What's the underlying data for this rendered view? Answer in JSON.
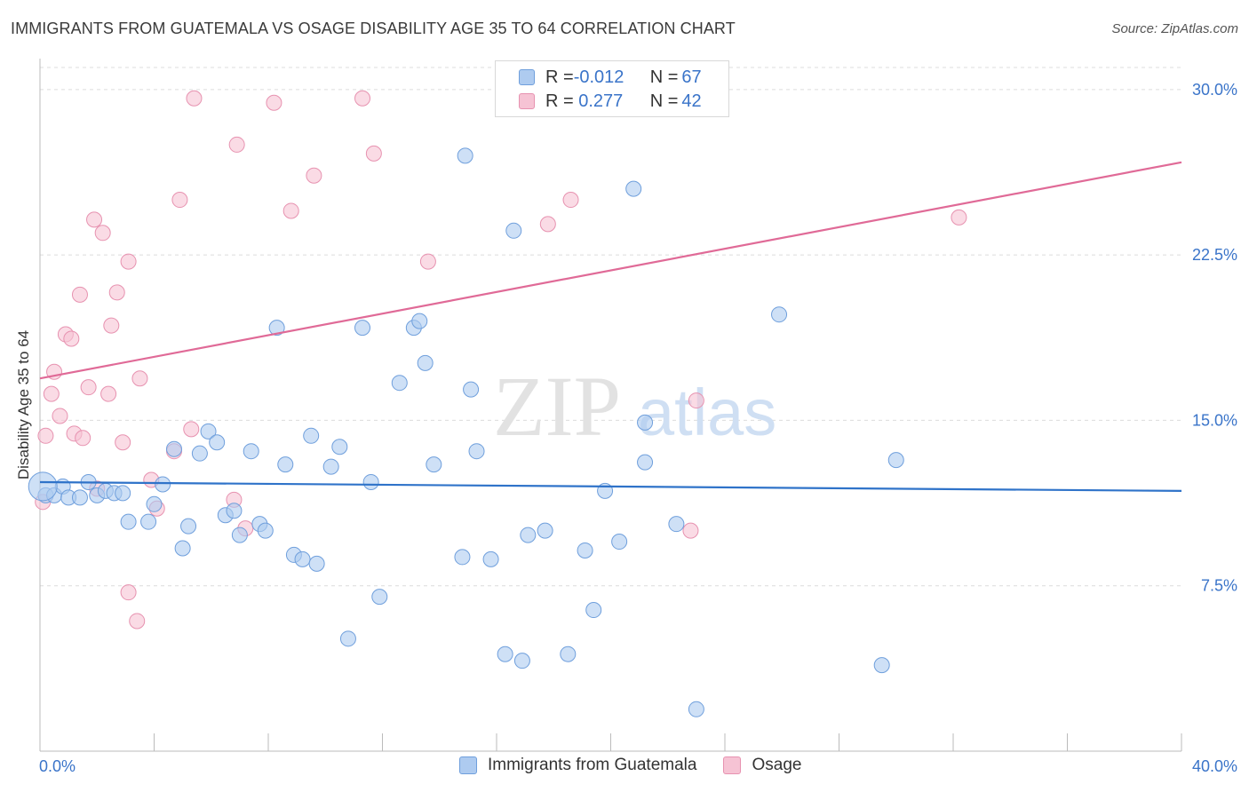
{
  "title": "IMMIGRANTS FROM GUATEMALA VS OSAGE DISABILITY AGE 35 TO 64 CORRELATION CHART",
  "source": "Source: ZipAtlas.com",
  "watermark": {
    "zip": "ZIP",
    "atlas": "atlas"
  },
  "legend_top": [
    {
      "r_label": "R = ",
      "r_value": "-0.012",
      "n_label": "N = ",
      "n_value": "67"
    },
    {
      "r_label": "R = ",
      "r_value": " 0.277",
      "n_label": "N = ",
      "n_value": "42"
    }
  ],
  "legend_bottom": [
    "Immigrants from Guatemala",
    "Osage"
  ],
  "colors": {
    "blue_fill": "#aecbf0",
    "blue_stroke": "#6f9fdc",
    "blue_line": "#2f73c9",
    "pink_fill": "#f6c3d4",
    "pink_stroke": "#e792b0",
    "pink_line": "#e06a97",
    "tick_label": "#3a74c9",
    "grid": "#dcdcdc"
  },
  "chart_data": {
    "type": "scatter",
    "title": "IMMIGRANTS FROM GUATEMALA VS OSAGE DISABILITY AGE 35 TO 64 CORRELATION CHART",
    "xlabel": "",
    "ylabel": "Disability Age 35 to 64",
    "xlim": [
      0,
      40
    ],
    "ylim": [
      0,
      31
    ],
    "x_tick_labels": [
      {
        "value": 0,
        "label": "0.0%"
      },
      {
        "value": 40,
        "label": "40.0%"
      }
    ],
    "x_minor_ticks": [
      0,
      4,
      8,
      12,
      16,
      20,
      24,
      28,
      32,
      36,
      40
    ],
    "y_ticks": [
      {
        "value": 7.5,
        "label": "7.5%"
      },
      {
        "value": 15.0,
        "label": "15.0%"
      },
      {
        "value": 22.5,
        "label": "22.5%"
      },
      {
        "value": 30.0,
        "label": "30.0%"
      }
    ],
    "grid": "horizontal dashed",
    "legend_position": "top-center",
    "series": [
      {
        "name": "Immigrants from Guatemala",
        "color": "blue",
        "trend": {
          "x": [
            0,
            40
          ],
          "y": [
            12.2,
            11.8
          ]
        },
        "points": [
          [
            0.2,
            11.6
          ],
          [
            0.5,
            11.6
          ],
          [
            0.8,
            12.0
          ],
          [
            1.0,
            11.5
          ],
          [
            1.4,
            11.5
          ],
          [
            1.7,
            12.2
          ],
          [
            2.0,
            11.6
          ],
          [
            2.3,
            11.8
          ],
          [
            2.6,
            11.7
          ],
          [
            2.9,
            11.7
          ],
          [
            3.1,
            10.4
          ],
          [
            3.8,
            10.4
          ],
          [
            4.0,
            11.2
          ],
          [
            4.3,
            12.1
          ],
          [
            4.7,
            13.7
          ],
          [
            5.0,
            9.2
          ],
          [
            5.2,
            10.2
          ],
          [
            5.6,
            13.5
          ],
          [
            5.9,
            14.5
          ],
          [
            6.2,
            14.0
          ],
          [
            6.5,
            10.7
          ],
          [
            6.8,
            10.9
          ],
          [
            7.0,
            9.8
          ],
          [
            7.4,
            13.6
          ],
          [
            7.7,
            10.3
          ],
          [
            7.9,
            10.0
          ],
          [
            8.3,
            19.2
          ],
          [
            8.6,
            13.0
          ],
          [
            8.9,
            8.9
          ],
          [
            9.2,
            8.7
          ],
          [
            9.5,
            14.3
          ],
          [
            9.7,
            8.5
          ],
          [
            10.2,
            12.9
          ],
          [
            10.5,
            13.8
          ],
          [
            10.8,
            5.1
          ],
          [
            11.3,
            19.2
          ],
          [
            11.6,
            12.2
          ],
          [
            11.9,
            7.0
          ],
          [
            12.6,
            16.7
          ],
          [
            13.1,
            19.2
          ],
          [
            13.3,
            19.5
          ],
          [
            13.5,
            17.6
          ],
          [
            13.8,
            13.0
          ],
          [
            14.8,
            8.8
          ],
          [
            14.9,
            27.0
          ],
          [
            15.1,
            16.4
          ],
          [
            15.3,
            13.6
          ],
          [
            15.8,
            8.7
          ],
          [
            16.3,
            4.4
          ],
          [
            16.6,
            23.6
          ],
          [
            16.9,
            4.1
          ],
          [
            17.1,
            9.8
          ],
          [
            17.7,
            10.0
          ],
          [
            18.5,
            4.4
          ],
          [
            19.1,
            9.1
          ],
          [
            19.4,
            6.4
          ],
          [
            19.8,
            11.8
          ],
          [
            20.3,
            9.5
          ],
          [
            20.8,
            25.5
          ],
          [
            21.2,
            14.9
          ],
          [
            21.2,
            13.1
          ],
          [
            22.3,
            10.3
          ],
          [
            23.0,
            1.9
          ],
          [
            25.9,
            19.8
          ],
          [
            29.5,
            3.9
          ],
          [
            30.0,
            13.2
          ],
          [
            0.1,
            12.0
          ]
        ]
      },
      {
        "name": "Osage",
        "color": "pink",
        "trend": {
          "x": [
            0,
            40
          ],
          "y": [
            16.9,
            26.7
          ]
        },
        "points": [
          [
            0.1,
            11.3
          ],
          [
            0.2,
            14.3
          ],
          [
            0.4,
            16.2
          ],
          [
            0.5,
            17.2
          ],
          [
            0.7,
            15.2
          ],
          [
            0.9,
            18.9
          ],
          [
            1.1,
            18.7
          ],
          [
            1.2,
            14.4
          ],
          [
            1.4,
            20.7
          ],
          [
            1.5,
            14.2
          ],
          [
            1.7,
            16.5
          ],
          [
            1.9,
            24.1
          ],
          [
            2.0,
            11.9
          ],
          [
            2.2,
            23.5
          ],
          [
            2.4,
            16.2
          ],
          [
            2.5,
            19.3
          ],
          [
            2.7,
            20.8
          ],
          [
            2.9,
            14.0
          ],
          [
            3.1,
            22.2
          ],
          [
            3.1,
            7.2
          ],
          [
            3.4,
            5.9
          ],
          [
            3.5,
            16.9
          ],
          [
            3.9,
            12.3
          ],
          [
            4.1,
            11.0
          ],
          [
            4.7,
            13.6
          ],
          [
            4.9,
            25.0
          ],
          [
            5.3,
            14.6
          ],
          [
            5.4,
            29.6
          ],
          [
            6.8,
            11.4
          ],
          [
            6.9,
            27.5
          ],
          [
            7.2,
            10.1
          ],
          [
            8.2,
            29.4
          ],
          [
            8.8,
            24.5
          ],
          [
            9.6,
            26.1
          ],
          [
            11.3,
            29.6
          ],
          [
            11.7,
            27.1
          ],
          [
            13.6,
            22.2
          ],
          [
            17.8,
            23.9
          ],
          [
            18.6,
            25.0
          ],
          [
            23.0,
            15.9
          ],
          [
            22.8,
            10.0
          ],
          [
            32.2,
            24.2
          ]
        ]
      }
    ]
  }
}
